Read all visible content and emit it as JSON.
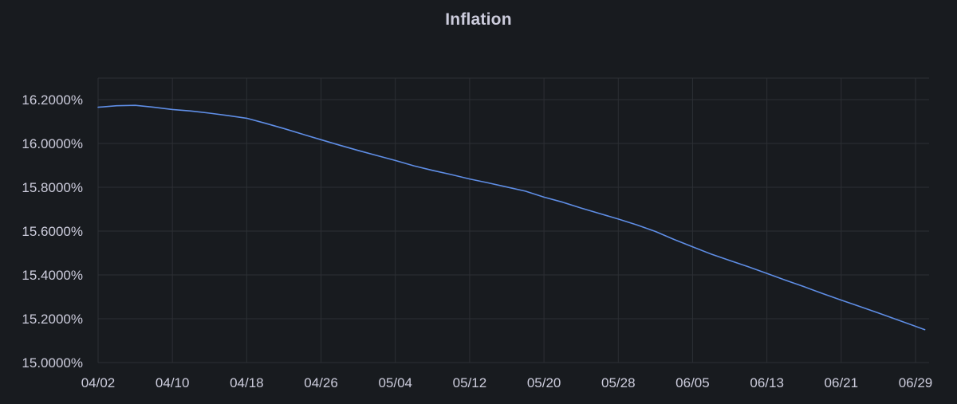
{
  "panel": {
    "title": "Inflation"
  },
  "chart_data": {
    "type": "line",
    "title": "Inflation",
    "xlabel": "",
    "ylabel": "",
    "x_ticks": [
      "04/02",
      "04/10",
      "04/18",
      "04/26",
      "05/04",
      "05/12",
      "05/20",
      "05/28",
      "06/05",
      "06/13",
      "06/21",
      "06/29"
    ],
    "y_ticks": [
      "16.2000%",
      "16.0000%",
      "15.8000%",
      "15.6000%",
      "15.4000%",
      "15.2000%",
      "15.0000%"
    ],
    "y_tick_values": [
      16.2,
      16.0,
      15.8,
      15.6,
      15.4,
      15.2,
      15.0
    ],
    "ylim": [
      15.0,
      16.3
    ],
    "xlim": [
      "04/02",
      "06/30"
    ],
    "grid": true,
    "legend": "none",
    "colors": {
      "background": "#181b1f",
      "series": "#5f8ee6",
      "grid": "#2c2f34",
      "text": "#ccccdc"
    },
    "series": [
      {
        "x": [
          "04/02",
          "04/04",
          "04/06",
          "04/08",
          "04/10",
          "04/12",
          "04/14",
          "04/16",
          "04/18",
          "04/20",
          "04/22",
          "04/24",
          "04/26",
          "04/28",
          "04/30",
          "05/02",
          "05/04",
          "05/06",
          "05/08",
          "05/10",
          "05/12",
          "05/14",
          "05/16",
          "05/18",
          "05/20",
          "05/22",
          "05/24",
          "05/26",
          "05/28",
          "05/30",
          "06/01",
          "06/03",
          "06/05",
          "06/07",
          "06/09",
          "06/11",
          "06/13",
          "06/15",
          "06/17",
          "06/19",
          "06/21",
          "06/23",
          "06/25",
          "06/27",
          "06/30"
        ],
        "values": [
          16.165,
          16.172,
          16.174,
          16.165,
          16.155,
          16.148,
          16.138,
          16.127,
          16.115,
          16.092,
          16.068,
          16.042,
          16.017,
          15.992,
          15.968,
          15.945,
          15.922,
          15.898,
          15.877,
          15.858,
          15.838,
          15.82,
          15.801,
          15.782,
          15.755,
          15.732,
          15.705,
          15.68,
          15.655,
          15.628,
          15.598,
          15.562,
          15.528,
          15.495,
          15.466,
          15.437,
          15.407,
          15.376,
          15.346,
          15.315,
          15.285,
          15.256,
          15.226,
          15.196,
          15.15
        ]
      }
    ]
  }
}
